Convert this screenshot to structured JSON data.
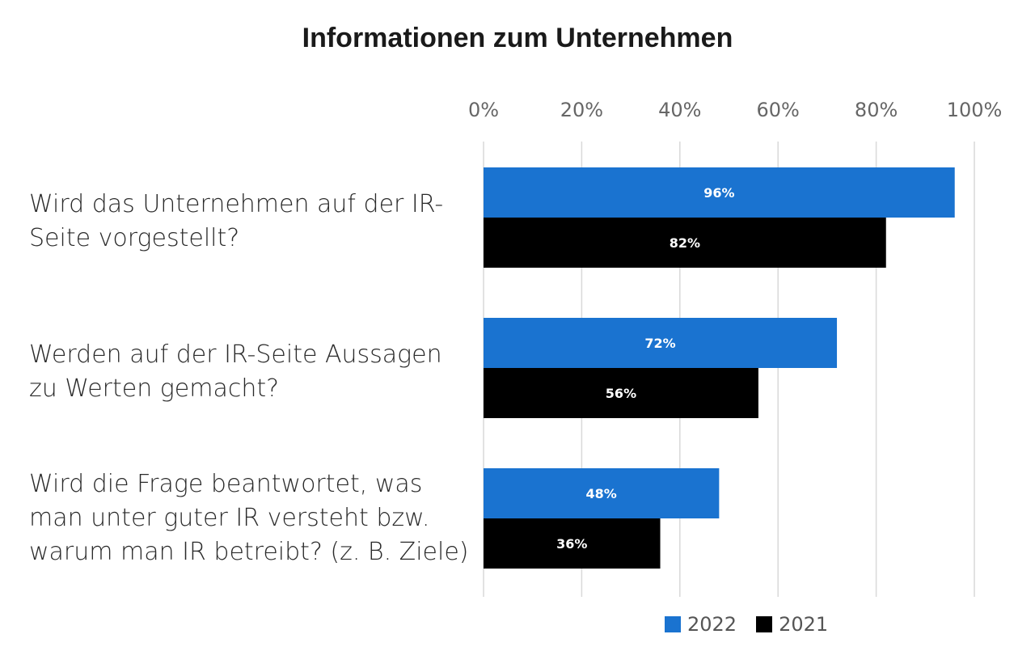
{
  "chart_data": {
    "type": "bar",
    "orientation": "horizontal",
    "title": "Informationen zum Unternehmen",
    "categories": [
      [
        "Wird das Unternehmen auf der IR-",
        "Seite vorgestellt?"
      ],
      [
        "Werden auf der IR-Seite Aussagen",
        "zu Werten gemacht?"
      ],
      [
        "Wird die Frage beantwortet, was",
        "man unter guter IR versteht bzw.",
        "warum man IR betreibt? (z. B. Ziele)"
      ]
    ],
    "series": [
      {
        "name": "2022",
        "color": "#1a73d0",
        "values": [
          96,
          72,
          48
        ],
        "labels": [
          "96%",
          "72%",
          "48%"
        ]
      },
      {
        "name": "2021",
        "color": "#000000",
        "values": [
          82,
          56,
          36
        ],
        "labels": [
          "82%",
          "56%",
          "36%"
        ]
      }
    ],
    "xlim": [
      0,
      100
    ],
    "xticks": [
      {
        "value": 0,
        "label": "0%"
      },
      {
        "value": 20,
        "label": "20%"
      },
      {
        "value": 40,
        "label": "40%"
      },
      {
        "value": 60,
        "label": "60%"
      },
      {
        "value": 80,
        "label": "80%"
      },
      {
        "value": 100,
        "label": "100%"
      }
    ],
    "xtick_position": "top",
    "grid": true,
    "legend": "bottom-right"
  }
}
